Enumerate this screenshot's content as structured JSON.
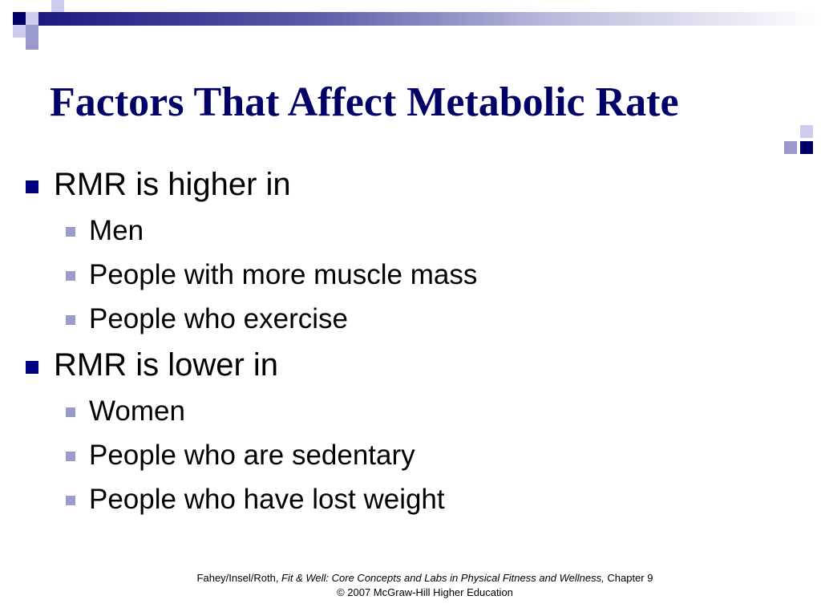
{
  "slide": {
    "title": "Factors That Affect Metabolic Rate",
    "sections": [
      {
        "heading": "RMR is higher in",
        "items": [
          "Men",
          "People with more muscle mass",
          "People who exercise"
        ]
      },
      {
        "heading": "RMR is lower in",
        "items": [
          "Women",
          "People who are sedentary",
          "People who have lost weight"
        ]
      }
    ]
  },
  "footer": {
    "authors": "Fahey/Insel/Roth, ",
    "book_title": "Fit & Well: Core Concepts and Labs in Physical Fitness and Wellness,",
    "chapter": " Chapter 9",
    "copyright": "© 2007 McGraw-Hill Higher Education"
  },
  "colors": {
    "title": "#000066",
    "primary_bullet": "#000080",
    "secondary_bullet": "#9999cc"
  }
}
